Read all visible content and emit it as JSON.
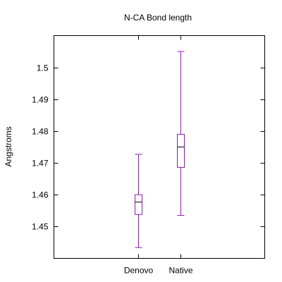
{
  "chart_data": {
    "type": "boxplot",
    "title": "N-CA Bond length",
    "xlabel": "",
    "ylabel": "Angstroms",
    "categories": [
      "Denovo",
      "Native"
    ],
    "ylim": [
      1.44,
      1.51
    ],
    "yticks": [
      1.45,
      1.46,
      1.47,
      1.48,
      1.49,
      1.5
    ],
    "ytick_labels": [
      "1.45",
      "1.46",
      "1.47",
      "1.48",
      "1.49",
      "1.5"
    ],
    "grid": false,
    "color": "#8b1bb0",
    "boxes": [
      {
        "label": "Denovo",
        "min": 1.4434,
        "q1": 1.4538,
        "median": 1.4577,
        "q3": 1.46,
        "max": 1.4727
      },
      {
        "label": "Native",
        "min": 1.4535,
        "q1": 1.4686,
        "median": 1.475,
        "q3": 1.479,
        "max": 1.505
      }
    ]
  }
}
